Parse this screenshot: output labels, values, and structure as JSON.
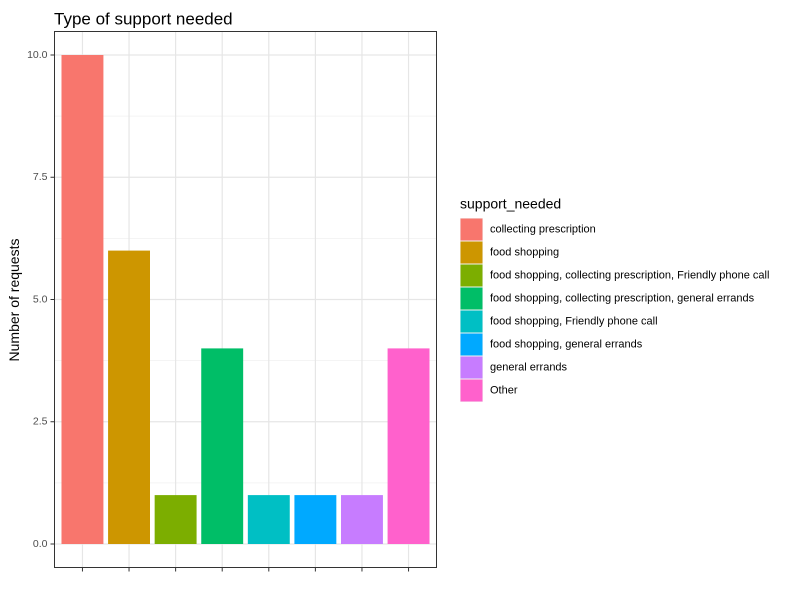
{
  "chart_data": {
    "type": "bar",
    "title": "Type of support needed",
    "xlabel": "",
    "ylabel": "Number of requests",
    "categories": [
      "collecting prescription",
      "food shopping",
      "food shopping, collecting prescription, Friendly phone call",
      "food shopping, collecting prescription, general errands",
      "food shopping, Friendly phone call",
      "food shopping, general errands",
      "general errands",
      "Other"
    ],
    "values": [
      10,
      6,
      1,
      4,
      1,
      1,
      1,
      4
    ],
    "colors": [
      "#F8766D",
      "#CD9600",
      "#7CAE00",
      "#00BE67",
      "#00BFC4",
      "#00A9FF",
      "#C77CFF",
      "#FF61CC"
    ],
    "ylim": [
      0,
      10.5
    ],
    "yticks": [
      0,
      2.5,
      5,
      7.5,
      10
    ],
    "ytick_labels": [
      "0.0",
      "2.5",
      "5.0",
      "7.5",
      "10.0"
    ],
    "grid": true,
    "x_tick_labels_shown": false,
    "legend": {
      "title": "support_needed",
      "placement": "right",
      "entries": [
        "collecting prescription",
        "food shopping",
        "food shopping, collecting prescription, Friendly phone call",
        "food shopping, collecting prescription, general errands",
        "food shopping, Friendly phone call",
        "food shopping, general errands",
        "general errands",
        "Other"
      ]
    }
  }
}
